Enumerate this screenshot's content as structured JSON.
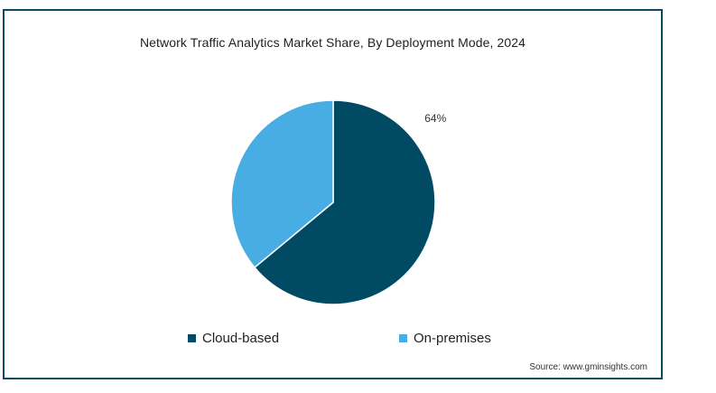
{
  "chart_data": {
    "type": "pie",
    "title": "Network Traffic Analytics Market Share, By Deployment Mode, 2024",
    "slices": [
      {
        "name": "Cloud-based",
        "value": 64,
        "label": "64%",
        "color": "#004b63"
      },
      {
        "name": "On-premises",
        "value": 36,
        "label": "",
        "color": "#47ade2"
      }
    ],
    "legend_position": "bottom"
  },
  "source": "Source: www.gminsights.com",
  "colors": {
    "frame": "#0b4a63"
  }
}
